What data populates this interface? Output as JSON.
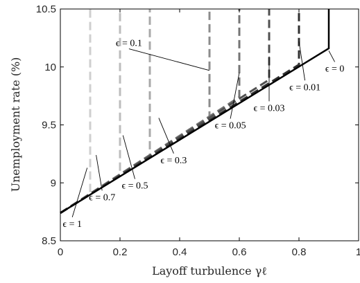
{
  "chart_data": {
    "type": "line",
    "xlabel": "Layoff turbulence γℓ",
    "ylabel": "Unemployment rate (%)",
    "xlim": [
      0,
      1
    ],
    "ylim": [
      8.5,
      10.5
    ],
    "x_ticks": [
      0,
      0.2,
      0.4,
      0.6,
      0.8,
      1
    ],
    "x_tick_labels": [
      "0",
      "0.2",
      "0.4",
      "0.6",
      "0.8",
      "1"
    ],
    "y_ticks": [
      8.5,
      9,
      9.5,
      10,
      10.5
    ],
    "y_tick_labels": [
      "8.5",
      "9",
      "9.5",
      "10",
      "10.5"
    ],
    "grid": false,
    "series": [
      {
        "name": "ϵ = 1",
        "color": "#cfcfcf",
        "style": "dashed",
        "x": [
          0,
          0.1,
          0.1
        ],
        "y": [
          8.74,
          8.9,
          10.5
        ]
      },
      {
        "name": "ϵ = 0.7",
        "color": "#bdbdbd",
        "style": "dashed",
        "x": [
          0,
          0.2,
          0.2
        ],
        "y": [
          8.74,
          9.07,
          10.5
        ]
      },
      {
        "name": "ϵ = 0.5",
        "color": "#a8a8a8",
        "style": "dashed",
        "x": [
          0,
          0.3,
          0.3
        ],
        "y": [
          8.74,
          9.24,
          10.5
        ]
      },
      {
        "name": "ϵ = 0.3",
        "color": "#8c8c8c",
        "style": "dashed",
        "x": [
          0,
          0.5,
          0.5
        ],
        "y": [
          8.74,
          9.57,
          10.5
        ]
      },
      {
        "name": "ϵ = 0.1",
        "color": "#747474",
        "style": "dashed",
        "x": [
          0,
          0.6,
          0.6
        ],
        "y": [
          8.74,
          9.74,
          10.5
        ]
      },
      {
        "name": "ϵ = 0.05",
        "color": "#505050",
        "style": "dashed",
        "x": [
          0,
          0.7,
          0.7
        ],
        "y": [
          8.74,
          9.89,
          10.5
        ]
      },
      {
        "name": "ϵ = 0.03",
        "color": "#303030",
        "style": "dashed",
        "x": [
          0,
          0.8,
          0.8
        ],
        "y": [
          8.74,
          10.02,
          10.5
        ]
      },
      {
        "name": "ϵ = 0.01",
        "color": "#000000",
        "style": "solid",
        "x": [
          0,
          0.9,
          0.9
        ],
        "y": [
          8.74,
          10.16,
          10.5
        ]
      }
    ],
    "annotations": [
      {
        "text": "ϵ = 0.1",
        "x": 0.5,
        "y": 9.97,
        "tx": 0.23,
        "ty": 10.18
      },
      {
        "text": "ϵ = 0",
        "x": 0.9,
        "y": 10.14,
        "tx": 0.92,
        "ty": 9.96
      },
      {
        "text": "ϵ = 0.01",
        "x": 0.8,
        "y": 10.22,
        "tx": 0.82,
        "ty": 9.8
      },
      {
        "text": "ϵ = 0.03",
        "x": 0.7,
        "y": 10.09,
        "tx": 0.7,
        "ty": 9.62
      },
      {
        "text": "ϵ = 0.05",
        "x": 0.6,
        "y": 9.95,
        "tx": 0.57,
        "ty": 9.47
      },
      {
        "text": "ϵ = 0.3",
        "x": 0.33,
        "y": 9.56,
        "tx": 0.38,
        "ty": 9.17
      },
      {
        "text": "ϵ = 0.5",
        "x": 0.21,
        "y": 9.41,
        "tx": 0.25,
        "ty": 8.95
      },
      {
        "text": "ϵ = 0.7",
        "x": 0.12,
        "y": 9.24,
        "tx": 0.14,
        "ty": 8.85
      },
      {
        "text": "ϵ = 1",
        "x": 0.09,
        "y": 9.13,
        "tx": 0.04,
        "ty": 8.62
      }
    ]
  }
}
